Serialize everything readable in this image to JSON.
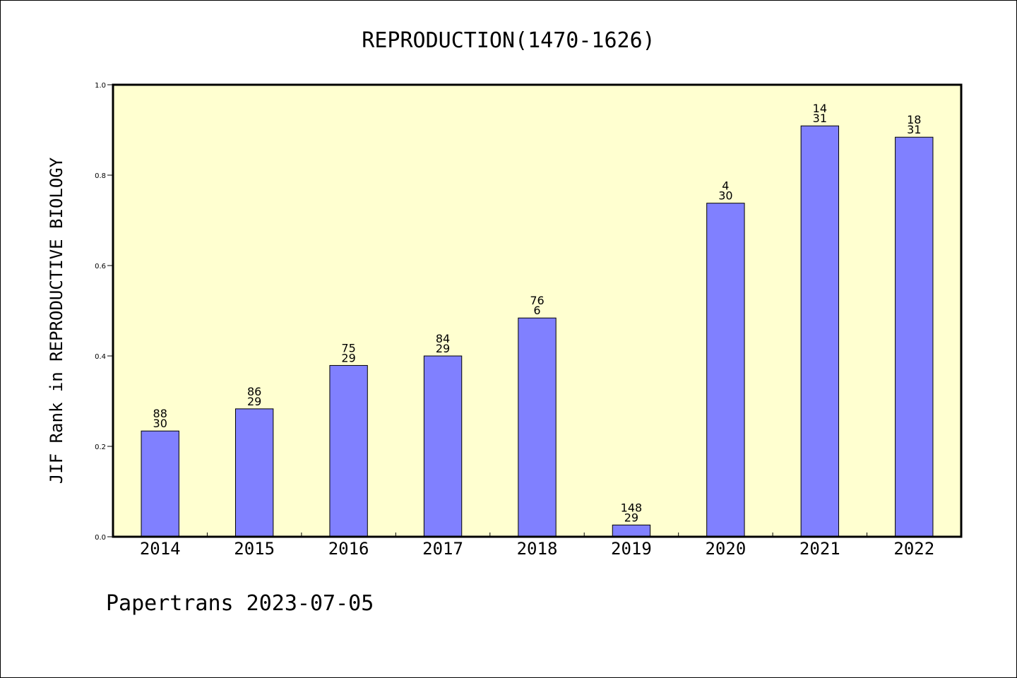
{
  "chart_data": {
    "type": "bar",
    "title": "REPRODUCTION(1470-1626)",
    "ylabel": "JIF Rank in REPRODUCTIVE BIOLOGY",
    "xlabel": "",
    "categories": [
      "2014",
      "2015",
      "2016",
      "2017",
      "2018",
      "2019",
      "2020",
      "2021",
      "2022"
    ],
    "values": [
      0.234,
      0.283,
      0.379,
      0.4,
      0.484,
      0.026,
      0.738,
      0.909,
      0.884
    ],
    "rank_labels": [
      "88",
      "86",
      "75",
      "84",
      "76",
      "148",
      "4",
      "14",
      "18"
    ],
    "total_labels": [
      "30",
      "29",
      "29",
      "29",
      "6",
      "29",
      "30",
      "31",
      "31"
    ],
    "ylim": [
      0,
      1.0
    ],
    "yticks": [
      "0.0",
      "0.2",
      "0.4",
      "0.6",
      "0.8",
      "1.0"
    ],
    "grid": false,
    "colors": {
      "plot_background": "#ffffd0",
      "bar_fill": "#8080ff",
      "bar_stroke": "#000000"
    }
  },
  "footer": {
    "text": "Papertrans 2023-07-05"
  }
}
